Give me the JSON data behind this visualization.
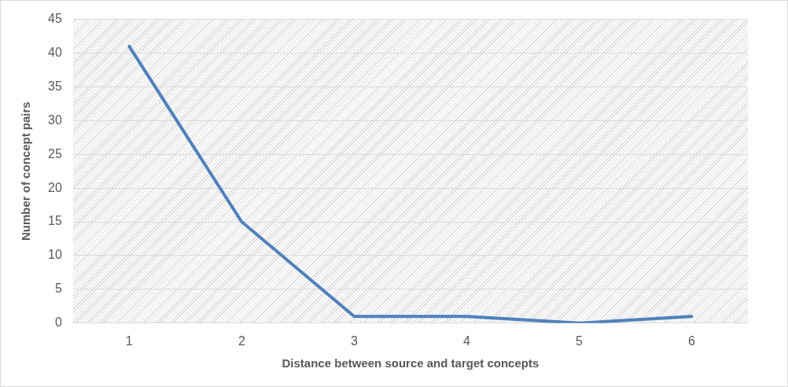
{
  "chart_data": {
    "type": "line",
    "xlabel": "Distance between source and target concepts",
    "ylabel": "Number of concept pairs",
    "categories": [
      "1",
      "2",
      "3",
      "4",
      "5",
      "6"
    ],
    "series": [
      {
        "color": "#4f81bd",
        "values": [
          41,
          15,
          1,
          1,
          0,
          1
        ]
      }
    ],
    "ylim": [
      0,
      45
    ],
    "yticks": [
      0,
      5,
      10,
      15,
      20,
      25,
      30,
      35,
      40,
      45
    ],
    "grid": "y",
    "legend": false,
    "marker": "none",
    "line_style": "solid"
  }
}
